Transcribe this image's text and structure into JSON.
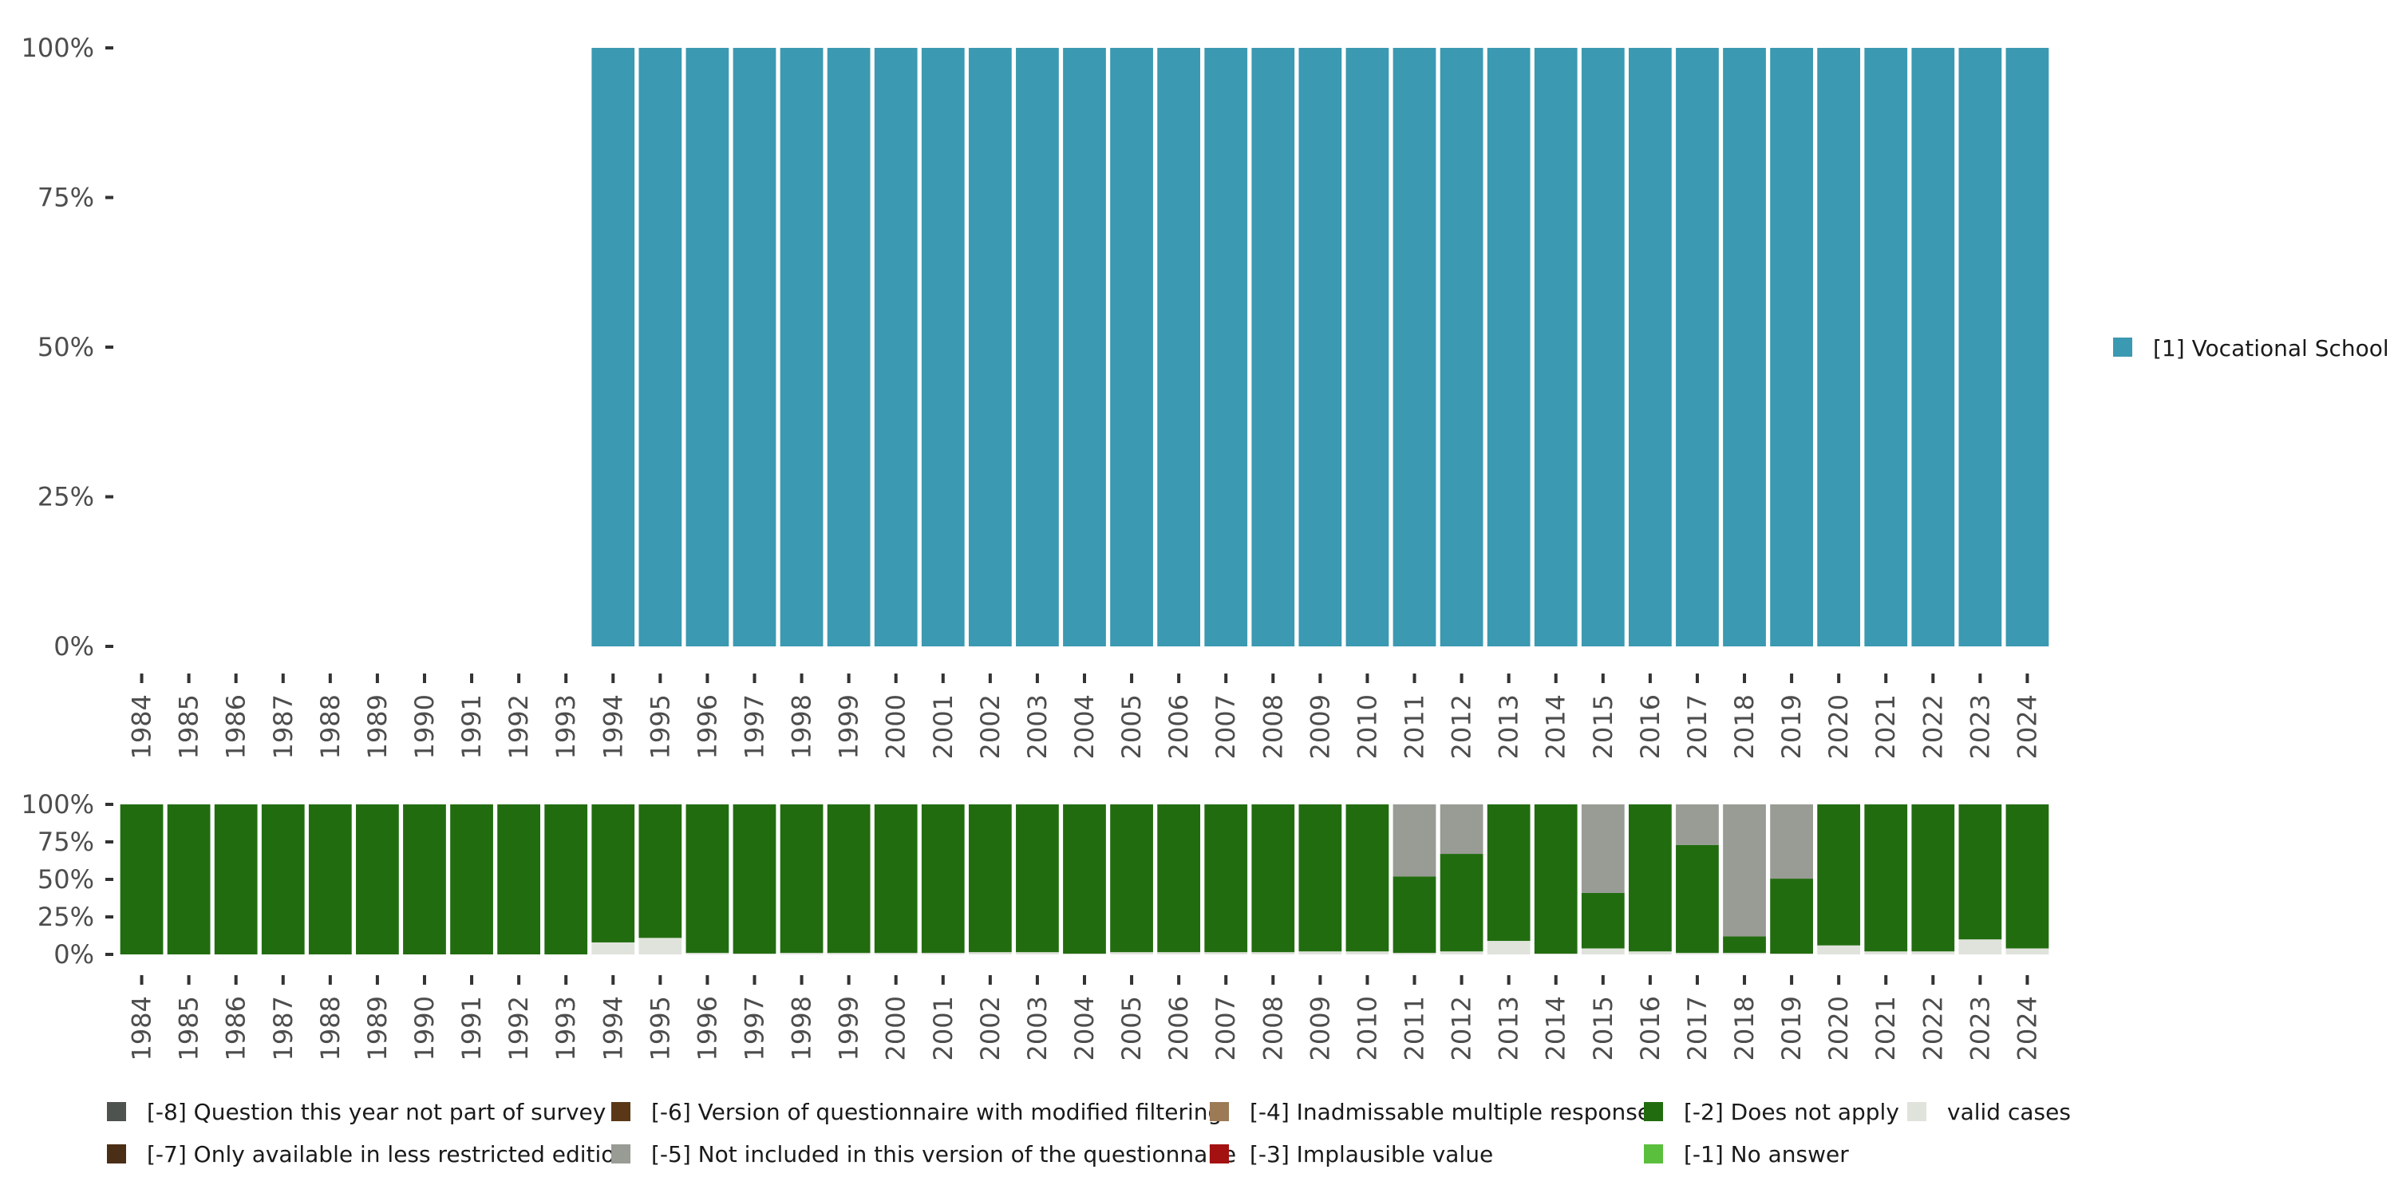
{
  "chart_data": [
    {
      "type": "bar",
      "stacked": true,
      "categories": [
        "1984",
        "1985",
        "1986",
        "1987",
        "1988",
        "1989",
        "1990",
        "1991",
        "1992",
        "1993",
        "1994",
        "1995",
        "1996",
        "1997",
        "1998",
        "1999",
        "2000",
        "2001",
        "2002",
        "2003",
        "2004",
        "2005",
        "2006",
        "2007",
        "2008",
        "2009",
        "2010",
        "2011",
        "2012",
        "2013",
        "2014",
        "2015",
        "2016",
        "2017",
        "2018",
        "2019",
        "2020",
        "2021",
        "2022",
        "2023",
        "2024"
      ],
      "yticks": [
        "0%",
        "25%",
        "50%",
        "75%",
        "100%"
      ],
      "ylim": [
        0,
        100
      ],
      "series": [
        {
          "name": "[1] Vocational School",
          "color": "#3b99b1",
          "values": [
            0,
            0,
            0,
            0,
            0,
            0,
            0,
            0,
            0,
            0,
            100,
            100,
            100,
            100,
            100,
            100,
            100,
            100,
            100,
            100,
            100,
            100,
            100,
            100,
            100,
            100,
            100,
            100,
            100,
            100,
            100,
            100,
            100,
            100,
            100,
            100,
            100,
            100,
            100,
            100,
            100
          ]
        }
      ],
      "legend_position": "right"
    },
    {
      "type": "bar",
      "stacked": true,
      "categories": [
        "1984",
        "1985",
        "1986",
        "1987",
        "1988",
        "1989",
        "1990",
        "1991",
        "1992",
        "1993",
        "1994",
        "1995",
        "1996",
        "1997",
        "1998",
        "1999",
        "2000",
        "2001",
        "2002",
        "2003",
        "2004",
        "2005",
        "2006",
        "2007",
        "2008",
        "2009",
        "2010",
        "2011",
        "2012",
        "2013",
        "2014",
        "2015",
        "2016",
        "2017",
        "2018",
        "2019",
        "2020",
        "2021",
        "2022",
        "2023",
        "2024"
      ],
      "yticks": [
        "0%",
        "25%",
        "50%",
        "75%",
        "100%"
      ],
      "ylim": [
        0,
        100
      ],
      "series": [
        {
          "name": "valid cases",
          "color": "#e0e3dc",
          "values": [
            0,
            0,
            0,
            0,
            0,
            0,
            0,
            0,
            0,
            0,
            8,
            11,
            1,
            0.5,
            1,
            1,
            1,
            1,
            1.5,
            1.5,
            0.5,
            1.5,
            1.5,
            1.5,
            1.5,
            2,
            2,
            1,
            2,
            9,
            0.5,
            4,
            2,
            1,
            1,
            0.5,
            6,
            2,
            2,
            10,
            4
          ]
        },
        {
          "name": "[-2] Does not apply",
          "color": "#226c10",
          "values": [
            100,
            100,
            100,
            100,
            100,
            100,
            100,
            100,
            100,
            100,
            92,
            89,
            99,
            99.5,
            99,
            99,
            99,
            99,
            98.5,
            98.5,
            99.5,
            98.5,
            98.5,
            98.5,
            98.5,
            98,
            98,
            51,
            65,
            91,
            99.5,
            37,
            98,
            72,
            11,
            50,
            94,
            98,
            98,
            90,
            96
          ]
        },
        {
          "name": "[-5] Not included in this version of the questionnaire",
          "color": "#999b95",
          "values": [
            0,
            0,
            0,
            0,
            0,
            0,
            0,
            0,
            0,
            0,
            0,
            0,
            0,
            0,
            0,
            0,
            0,
            0,
            0,
            0,
            0,
            0,
            0,
            0,
            0,
            0,
            0,
            48,
            33,
            0,
            0,
            59,
            0,
            27,
            88,
            49.5,
            0,
            0,
            0,
            0,
            0
          ]
        }
      ]
    }
  ],
  "legend": [
    {
      "label": "[-8] Question this year not part of survey",
      "color": "#4f5350"
    },
    {
      "label": "[-7] Only available in less restricted edition",
      "color": "#4a2e15"
    },
    {
      "label": "[-6] Version of questionnaire with modified filtering",
      "color": "#5a3817"
    },
    {
      "label": "[-5] Not included in this version of the questionnaire",
      "color": "#999b95"
    },
    {
      "label": "[-4] Inadmissable multiple response",
      "color": "#9c7a55"
    },
    {
      "label": "[-3] Implausible value",
      "color": "#a41111"
    },
    {
      "label": "[-2] Does not apply",
      "color": "#226c10"
    },
    {
      "label": "[-1] No answer",
      "color": "#5bbf3e"
    },
    {
      "label": "valid cases",
      "color": "#e0e3dc"
    }
  ]
}
